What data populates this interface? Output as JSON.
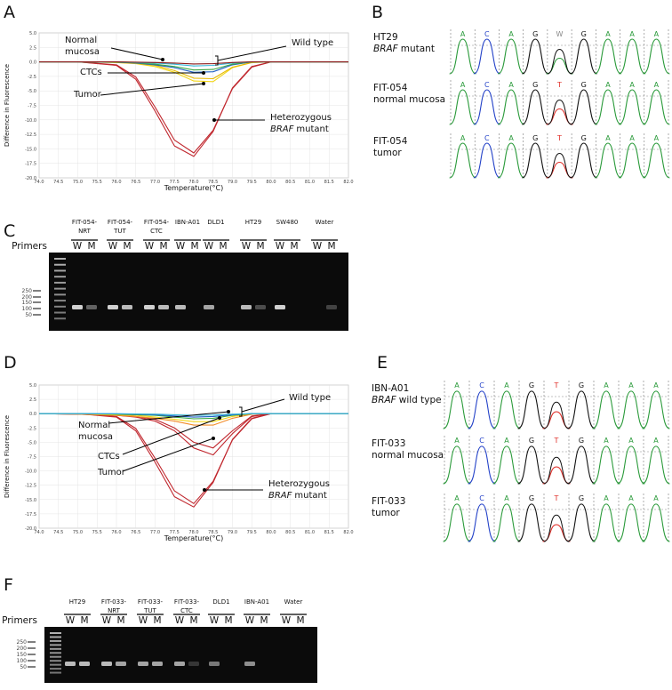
{
  "panel_letters": [
    "A",
    "B",
    "C",
    "D",
    "E",
    "F"
  ],
  "chart_data": [
    {
      "type": "line",
      "xlabel": "Temperature(°C)",
      "ylabel": "Difference in Fluorescence",
      "x": [
        74,
        75,
        76,
        76.5,
        77,
        77.5,
        78,
        78.5,
        79,
        79.5,
        80,
        82
      ],
      "series": [
        {
          "color": "#c0262d",
          "values": [
            0,
            0,
            -0.6,
            -3,
            -8.5,
            -14.5,
            -16.3,
            -12,
            -4.5,
            -0.8,
            0,
            0
          ]
        },
        {
          "color": "#c0262d",
          "values": [
            0,
            0,
            -0.5,
            -2.6,
            -7.8,
            -13.5,
            -15.7,
            -11.8,
            -4.6,
            -0.9,
            0,
            0
          ]
        },
        {
          "color": "#f2d516",
          "values": [
            0,
            0,
            -0.1,
            -0.3,
            -0.8,
            -1.8,
            -3.3,
            -3.4,
            -1,
            -0.1,
            0,
            0
          ]
        },
        {
          "color": "#e6b800",
          "values": [
            0,
            0,
            -0.1,
            -0.25,
            -0.6,
            -1.5,
            -2.8,
            -2.9,
            -0.9,
            -0.1,
            0,
            0
          ]
        },
        {
          "color": "#1f5fc4",
          "values": [
            0,
            0,
            -0.05,
            -0.2,
            -0.5,
            -1,
            -1.8,
            -1.7,
            -0.5,
            0,
            0,
            0
          ]
        },
        {
          "color": "#3aa845",
          "values": [
            0,
            0,
            -0.05,
            -0.15,
            -0.4,
            -0.8,
            -1.4,
            -1.3,
            -0.4,
            0,
            0,
            0
          ]
        },
        {
          "color": "#35b8d9",
          "values": [
            0,
            0,
            0,
            -0.1,
            -0.2,
            -0.4,
            -0.7,
            -0.6,
            -0.2,
            0,
            0,
            0
          ]
        },
        {
          "color": "#8b1a1a",
          "values": [
            0,
            0,
            0,
            -0.05,
            -0.1,
            -0.2,
            -0.35,
            -0.3,
            -0.1,
            0,
            0,
            0
          ]
        }
      ],
      "xlim": [
        74,
        82
      ],
      "ylim": [
        -20,
        5
      ],
      "xticks": [
        {
          "value": 74,
          "label": "74.0"
        },
        74.5,
        {
          "value": 75,
          "label": "75.0"
        },
        75.5,
        {
          "value": 76,
          "label": "76.0"
        },
        76.5,
        {
          "value": 77,
          "label": "77.0"
        },
        77.5,
        {
          "value": 78,
          "label": "78.0"
        },
        78.5,
        {
          "value": 79,
          "label": "79.0"
        },
        79.5,
        {
          "value": 80,
          "label": "80.0"
        },
        80.5,
        {
          "value": 81,
          "label": "81.0"
        },
        81.5,
        {
          "value": 82,
          "label": "82.0"
        }
      ],
      "yticks": [
        {
          "value": 5,
          "label": "5.0"
        },
        2.5,
        {
          "value": 0,
          "label": "0.0"
        },
        -2.5,
        {
          "value": -5,
          "label": "-5.0"
        },
        -7.5,
        {
          "value": -10,
          "label": "-10.0"
        },
        -12.5,
        {
          "value": -15,
          "label": "-15.0"
        },
        -17.5,
        {
          "value": -20,
          "label": "-20.0"
        }
      ],
      "grid": true,
      "annotations": [
        {
          "lines": [
            [
              {
                "text": "Normal"
              }
            ],
            [
              {
                "text": "mucosa"
              }
            ]
          ]
        },
        {
          "lines": [
            [
              {
                "text": "Wild type"
              }
            ]
          ]
        },
        {
          "lines": [
            [
              {
                "text": "CTCs"
              }
            ]
          ]
        },
        {
          "lines": [
            [
              {
                "text": "Tumor"
              }
            ]
          ]
        },
        {
          "lines": [
            [
              {
                "text": "Heterozygous"
              }
            ],
            [
              {
                "text": "BRAF",
                "italic": true
              },
              {
                "text": "mutant"
              }
            ]
          ]
        }
      ]
    },
    {
      "type": "line",
      "xlabel": "Temperature(°C)",
      "ylabel": "Difference in Fluorescence",
      "x": [
        74,
        75,
        76,
        76.5,
        77,
        77.5,
        78,
        78.5,
        79,
        79.5,
        80,
        82
      ],
      "series": [
        {
          "color": "#c0262d",
          "values": [
            0,
            0,
            -0.6,
            -3,
            -8.5,
            -14.5,
            -16.3,
            -12,
            -4.5,
            -0.8,
            0,
            0
          ]
        },
        {
          "color": "#c0262d",
          "values": [
            0,
            0,
            -0.5,
            -2.6,
            -7.8,
            -13.5,
            -15.7,
            -11.8,
            -4.6,
            -0.9,
            0,
            0
          ]
        },
        {
          "color": "#c0262d",
          "values": [
            0,
            -0.1,
            -0.3,
            -0.6,
            -1.3,
            -3,
            -6,
            -7.2,
            -3.5,
            -0.5,
            0,
            0
          ]
        },
        {
          "color": "#c0262d",
          "values": [
            0,
            -0.1,
            -0.3,
            -0.5,
            -1,
            -2.5,
            -5,
            -6,
            -3,
            -0.4,
            0,
            0
          ]
        },
        {
          "color": "#f28c28",
          "values": [
            0,
            -0.1,
            -0.3,
            -0.5,
            -0.8,
            -1.3,
            -2,
            -2,
            -0.8,
            -0.1,
            0,
            0
          ]
        },
        {
          "color": "#f2d516",
          "values": [
            0,
            0,
            -0.2,
            -0.3,
            -0.6,
            -1,
            -1.4,
            -1.4,
            -0.5,
            0,
            0,
            0
          ]
        },
        {
          "color": "#3aa845",
          "values": [
            0,
            0,
            -0.1,
            -0.2,
            -0.3,
            -0.6,
            -0.9,
            -0.8,
            -0.3,
            0,
            0,
            0
          ]
        },
        {
          "color": "#1f5fc4",
          "values": [
            0,
            0,
            -0.05,
            -0.1,
            -0.2,
            -0.4,
            -0.6,
            -0.5,
            -0.2,
            0,
            0,
            0
          ]
        },
        {
          "color": "#35b8d9",
          "values": [
            0,
            0,
            0,
            -0.05,
            -0.1,
            -0.2,
            -0.3,
            -0.25,
            -0.1,
            0,
            0,
            0
          ]
        }
      ],
      "xlim": [
        74,
        82
      ],
      "ylim": [
        -20,
        5
      ],
      "xticks": [
        {
          "value": 74,
          "label": "74.0"
        },
        74.5,
        {
          "value": 75,
          "label": "75.0"
        },
        75.5,
        {
          "value": 76,
          "label": "76.0"
        },
        76.5,
        {
          "value": 77,
          "label": "77.0"
        },
        77.5,
        {
          "value": 78,
          "label": "78.0"
        },
        78.5,
        {
          "value": 79,
          "label": "79.0"
        },
        79.5,
        {
          "value": 80,
          "label": "80.0"
        },
        80.5,
        {
          "value": 81,
          "label": "81.0"
        },
        81.5,
        {
          "value": 82,
          "label": "82.0"
        }
      ],
      "yticks": [
        {
          "value": 5,
          "label": "5.0"
        },
        2.5,
        {
          "value": 0,
          "label": "0.0"
        },
        -2.5,
        {
          "value": -5,
          "label": "-5.0"
        },
        -7.5,
        {
          "value": -10,
          "label": "-10.0"
        },
        -12.5,
        {
          "value": -15,
          "label": "-15.0"
        },
        -17.5,
        {
          "value": -20,
          "label": "-20.0"
        }
      ],
      "grid": true,
      "annotations": [
        {
          "lines": [
            [
              {
                "text": "Wild type"
              }
            ]
          ]
        },
        {
          "lines": [
            [
              {
                "text": "Normal"
              }
            ],
            [
              {
                "text": "mucosa"
              }
            ]
          ]
        },
        {
          "lines": [
            [
              {
                "text": "CTCs"
              }
            ]
          ]
        },
        {
          "lines": [
            [
              {
                "text": "Tumor"
              }
            ]
          ]
        },
        {
          "lines": [
            [
              {
                "text": "Heterozygous"
              }
            ],
            [
              {
                "text": "BRAF",
                "italic": true
              },
              {
                "text": "mutant"
              }
            ]
          ]
        }
      ]
    }
  ],
  "sequencing": [
    {
      "rows": [
        {
          "lines": [
            [
              {
                "text": "HT29"
              }
            ],
            [
              {
                "text": "BRAF",
                "italic": true
              },
              {
                "text": "mutant"
              }
            ]
          ],
          "bases": [
            "A",
            "C",
            "A",
            "G",
            "W",
            "G",
            "A",
            "A",
            "A"
          ]
        },
        {
          "lines": [
            [
              {
                "text": "FIT-054"
              }
            ],
            [
              {
                "text": "normal mucosa"
              }
            ]
          ],
          "bases": [
            "A",
            "C",
            "A",
            "G",
            "T",
            "G",
            "A",
            "A",
            "A"
          ]
        },
        {
          "lines": [
            [
              {
                "text": "FIT-054"
              }
            ],
            [
              {
                "text": "tumor"
              }
            ]
          ],
          "bases": [
            "A",
            "C",
            "A",
            "G",
            "T",
            "G",
            "A",
            "A",
            "A"
          ]
        }
      ]
    },
    {
      "rows": [
        {
          "lines": [
            [
              {
                "text": "IBN-A01"
              }
            ],
            [
              {
                "text": "BRAF",
                "italic": true
              },
              {
                "text": "wild type"
              }
            ]
          ],
          "bases": [
            "A",
            "C",
            "A",
            "G",
            "T",
            "G",
            "A",
            "A",
            "A"
          ]
        },
        {
          "lines": [
            [
              {
                "text": "FIT-033"
              }
            ],
            [
              {
                "text": "normal mucosa"
              }
            ]
          ],
          "bases": [
            "A",
            "C",
            "A",
            "G",
            "T",
            "G",
            "A",
            "A",
            "A"
          ]
        },
        {
          "lines": [
            [
              {
                "text": "FIT-033"
              }
            ],
            [
              {
                "text": "tumor"
              }
            ]
          ],
          "bases": [
            "A",
            "C",
            "A",
            "G",
            "T",
            "G",
            "A",
            "A",
            "A"
          ]
        }
      ]
    }
  ],
  "gels": [
    {
      "primers_label": "Primers",
      "lane_labels": [
        "W",
        "M"
      ],
      "samples": [
        [
          "FIT-054-",
          "NRT"
        ],
        [
          "FIT-054-",
          "TUT"
        ],
        [
          "FIT-054-",
          "CTC"
        ],
        [
          "IBN-A01"
        ],
        [
          "DLD1"
        ],
        [
          "HT29"
        ],
        [
          "SW480"
        ],
        [
          "Water"
        ]
      ],
      "sizes": [
        "250",
        "200",
        "150",
        "100",
        "50"
      ]
    },
    {
      "primers_label": "Primers",
      "lane_labels": [
        "W",
        "M"
      ],
      "samples": [
        [
          "HT29"
        ],
        [
          "FIT-033-",
          "NRT"
        ],
        [
          "FIT-033-",
          "TUT"
        ],
        [
          "FIT-033-",
          "CTC"
        ],
        [
          "DLD1"
        ],
        [
          "IBN-A01"
        ],
        [
          "Water"
        ]
      ],
      "sizes": [
        "250",
        "200",
        "150",
        "100",
        "50"
      ]
    }
  ]
}
